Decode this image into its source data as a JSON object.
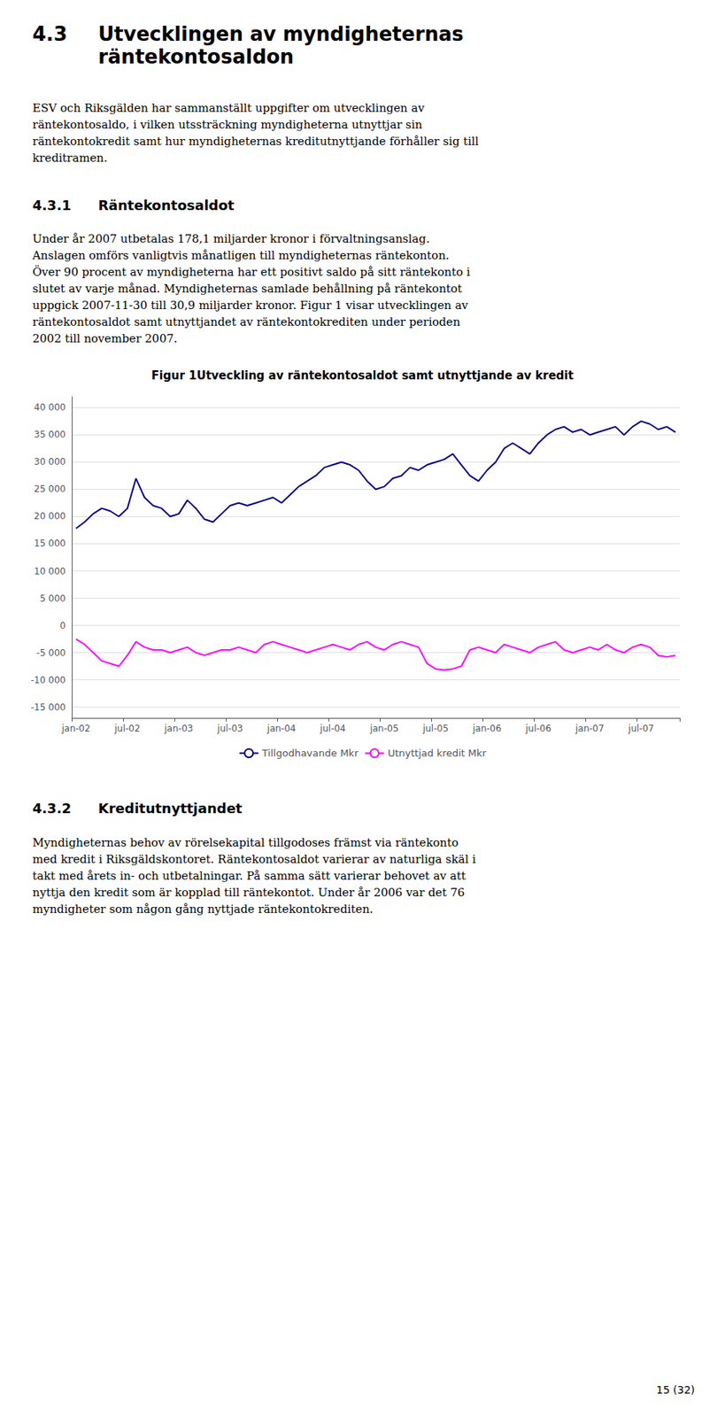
{
  "chart_data": {
    "type": "line",
    "title": "Figur 1Utveckling av räntekontosaldot samt utnyttjande av kredit",
    "annotations": [
      "4.3",
      "Utvecklingen av myndigheternas",
      "räntekontosaldon",
      "ESV och Riksgälden har sammanställt uppgifter om utvecklingen av",
      "räntekontosaldo, i vilken utssträckning myndigheterna utnyttjar sin",
      "räntekontokredit samt hur myndigheternas kreditutnyttjande förhåller sig till",
      "kreditramen.",
      "4.3.1",
      "Räntekontosaldot",
      "Under år 2007 utbetalas 178,1 miljarder kronor i förvaltningsanslag.",
      "Anslagen omförs vanligtvis månatligen till myndigheternas räntekonton.",
      "Över 90 procent av myndigheterna har ett positivt saldo på sitt räntekonto i",
      "slutet av varje månad. Myndigheternas samlade behållning på räntekontot",
      "uppgick 2007-11-30 till 30,9 miljarder kronor. Figur 1 visar utvecklingen av",
      "räntekontosaldot samt utnyttjandet av räntekontokrediten under perioden",
      "2002 till november 2007.",
      "4.3.2",
      "Kreditutnyttjandet",
      "Myndigheternas behov av rörelsekapital tillgodoses främst via räntekonto",
      "med kredit i Riksgäldskontoret. Räntekontosaldot varierar av naturliga skäl i",
      "takt med årets in- och utbetalningar. På samma sätt varierar behovet av att",
      "nyttja den kredit som är kopplad till räntekontot. Under år 2006 var det 76",
      "myndigheter som någon gång nyttjade räntekontokrediten.",
      "15 (32)"
    ],
    "categories": [
      "jan-02",
      null,
      null,
      null,
      null,
      null,
      "jul-02",
      null,
      null,
      null,
      null,
      null,
      "jan-03",
      null,
      null,
      null,
      null,
      null,
      "jul-03",
      null,
      null,
      null,
      null,
      null,
      "jan-04",
      null,
      null,
      null,
      null,
      null,
      "jul-04",
      null,
      null,
      null,
      null,
      null,
      "jan-05",
      null,
      null,
      null,
      null,
      null,
      "jul-05",
      null,
      null,
      null,
      null,
      null,
      "jan-06",
      null,
      null,
      null,
      null,
      null,
      "jul-06",
      null,
      null,
      null,
      null,
      null,
      "jan-07",
      null,
      null,
      null,
      null,
      null,
      "jul-07",
      null,
      null,
      null,
      null
    ],
    "series": [
      {
        "name": "Tillgodhavande Mkr",
        "color": "#00008B",
        "values": [
          17800,
          19000,
          20500,
          21500,
          21000,
          20000,
          21500,
          27000,
          23500,
          22000,
          21500,
          20000,
          20500,
          23000,
          21500,
          19500,
          19000,
          20500,
          22000,
          22500,
          22000,
          22500,
          23000,
          23500,
          22500,
          24000,
          25500,
          26500,
          27500,
          29000,
          29500,
          30000,
          29500,
          28500,
          26500,
          25000,
          25500,
          27000,
          27500,
          29000,
          28500,
          29500,
          30000,
          30500,
          31500,
          29500,
          27500,
          26500,
          28500,
          30000,
          32500,
          33500,
          32500,
          31500,
          33500,
          35000,
          36000,
          36500,
          35500,
          36000,
          35000,
          35500,
          36000,
          36500,
          35000,
          36500,
          37500,
          37000,
          36000,
          36500,
          35500
        ]
      },
      {
        "name": "Utnyttjad kredit Mkr",
        "color": "#FF00FF",
        "values": [
          -2500,
          -3500,
          -5000,
          -6500,
          -7000,
          -7500,
          -5500,
          -3000,
          -4000,
          -4500,
          -4500,
          -5000,
          -4500,
          -4000,
          -5000,
          -5500,
          -5000,
          -4500,
          -4500,
          -4000,
          -4500,
          -5000,
          -3500,
          -3000,
          -3500,
          -4000,
          -4500,
          -5000,
          -4500,
          -4000,
          -3500,
          -4000,
          -4500,
          -3500,
          -3000,
          -4000,
          -4500,
          -3500,
          -3000,
          -3500,
          -4000,
          -7000,
          -8000,
          -8200,
          -8000,
          -7500,
          -4500,
          -4000,
          -4500,
          -5000,
          -3500,
          -4000,
          -4500,
          -5000,
          -4000,
          -3500,
          -3000,
          -4500,
          -5000,
          -4500,
          -4000,
          -4500,
          -3500,
          -4500,
          -5000,
          -4000,
          -3500,
          -4000,
          -5500,
          -5800,
          -5500
        ]
      }
    ],
    "ylim": [
      -17000,
      42000
    ],
    "yticks": [
      {
        "value": -15000,
        "label": "-15 000"
      },
      {
        "value": -10000,
        "label": "-10 000"
      },
      {
        "value": -5000,
        "label": "-5 000"
      },
      0,
      {
        "value": 5000,
        "label": "5 000"
      },
      {
        "value": 10000,
        "label": "10 000"
      },
      {
        "value": 15000,
        "label": "15 000"
      },
      {
        "value": 20000,
        "label": "20 000"
      },
      {
        "value": 25000,
        "label": "25 000"
      },
      {
        "value": 30000,
        "label": "30 000"
      },
      {
        "value": 35000,
        "label": "35 000"
      },
      {
        "value": 40000,
        "label": "40 000"
      }
    ],
    "grid": true,
    "legend": "bottom"
  }
}
